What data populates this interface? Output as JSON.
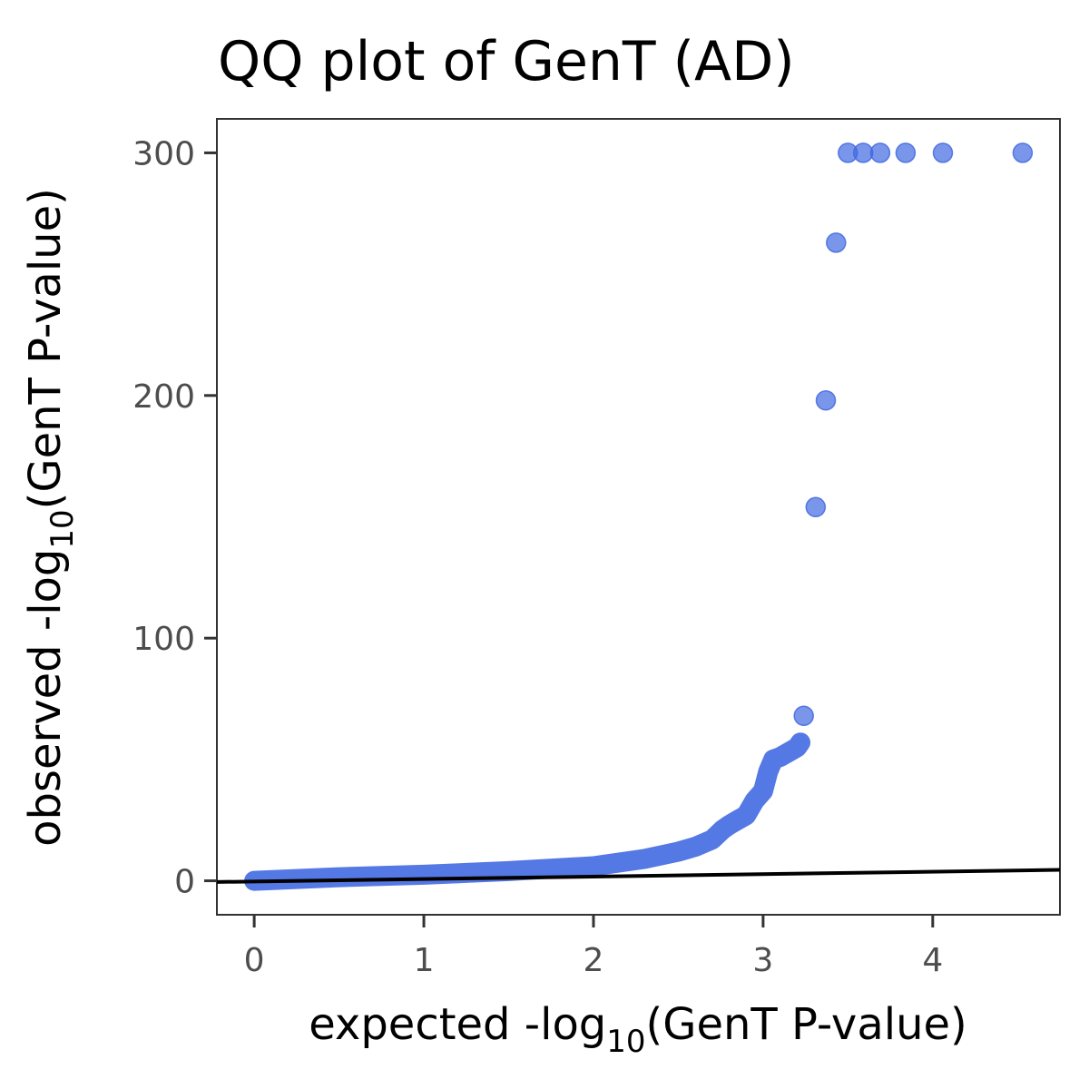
{
  "chart_data": {
    "type": "scatter",
    "title": "QQ plot of GenT (AD)",
    "xlabel": {
      "prefix": "expected -log",
      "sub": "10",
      "suffix": "(GenT P-value)"
    },
    "ylabel": {
      "prefix": "observed -log",
      "sub": "10",
      "suffix": "(GenT P-value)"
    },
    "xlim": [
      -0.22,
      4.75
    ],
    "ylim": [
      -14,
      314
    ],
    "x_ticks": [
      0,
      1,
      2,
      3,
      4
    ],
    "x_tick_labels": [
      "0",
      "1",
      "2",
      "3",
      "4"
    ],
    "y_ticks": [
      0,
      100,
      200,
      300
    ],
    "y_tick_labels": [
      "0",
      "100",
      "200",
      "300"
    ],
    "grid": false,
    "legend": "none",
    "point_color": "#4169E1",
    "reference_line": {
      "color": "#000000",
      "x": [
        -0.22,
        4.75
      ],
      "y": [
        -0.5,
        4.5
      ]
    },
    "series": [
      {
        "x": [
          3.24,
          3.31,
          3.37,
          3.43,
          3.5,
          3.59,
          3.69,
          3.84,
          4.06,
          4.53
        ],
        "y": [
          68,
          154,
          198,
          263,
          300,
          300,
          300,
          300,
          300,
          300
        ]
      }
    ],
    "curve": {
      "x": [
        0,
        0.5,
        1.0,
        1.5,
        2.0,
        2.3,
        2.5,
        2.6,
        2.7,
        2.76,
        2.8,
        2.85,
        2.9,
        2.95,
        3.0,
        3.03,
        3.06,
        3.1,
        3.15,
        3.2,
        3.22
      ],
      "y": [
        0,
        1.5,
        2.5,
        4,
        6,
        9,
        12,
        14,
        17,
        21,
        23,
        25,
        27,
        33,
        37,
        45,
        50,
        51,
        53,
        55,
        57
      ]
    }
  }
}
